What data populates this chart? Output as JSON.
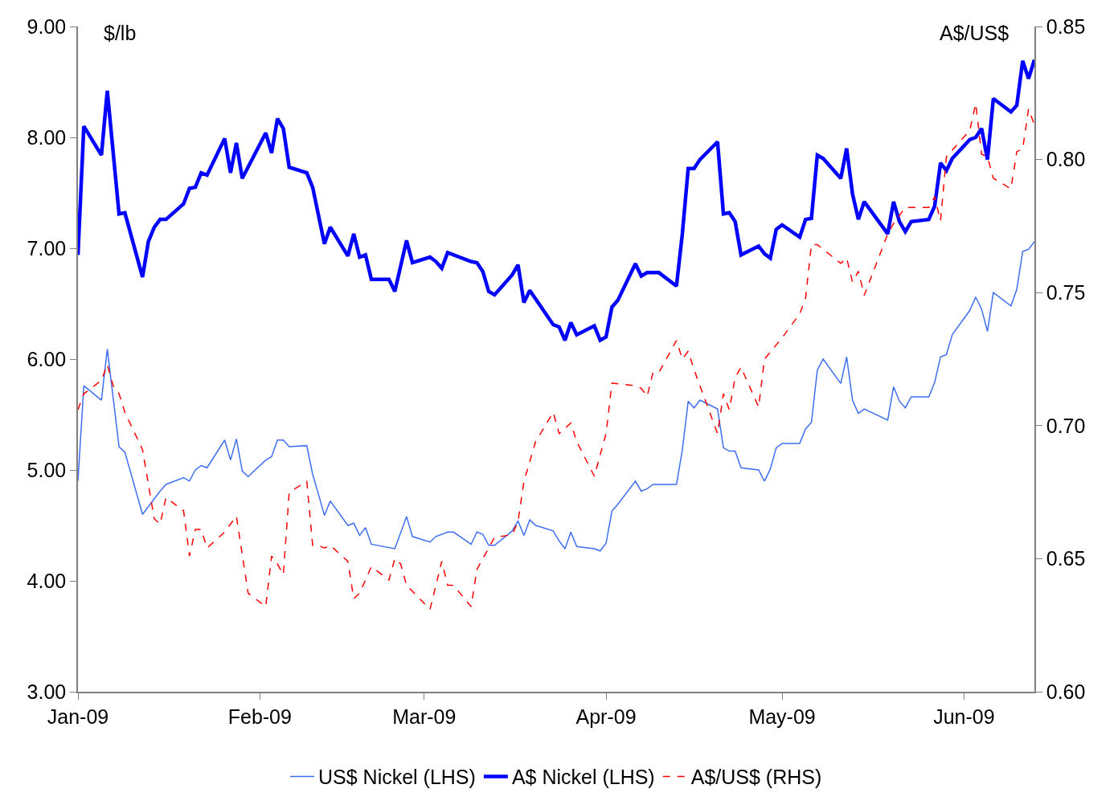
{
  "chart_data": {
    "type": "line",
    "ylabel": "$/lb",
    "y2label": "A$/US$",
    "xlim": [
      "2009-01-01",
      "2009-06-13"
    ],
    "xticks": [
      {
        "value": "2009-01-01",
        "label": "Jan-09"
      },
      {
        "value": "2009-02-01",
        "label": "Feb-09"
      },
      {
        "value": "2009-03-01",
        "label": "Mar-09"
      },
      {
        "value": "2009-04-01",
        "label": "Apr-09"
      },
      {
        "value": "2009-05-01",
        "label": "May-09"
      },
      {
        "value": "2009-06-01",
        "label": "Jun-09"
      }
    ],
    "ylim": [
      3,
      9
    ],
    "yticks": [
      {
        "value": 3,
        "label": "3.00"
      },
      {
        "value": 4,
        "label": "4.00"
      },
      {
        "value": 5,
        "label": "5.00"
      },
      {
        "value": 6,
        "label": "6.00"
      },
      {
        "value": 7,
        "label": "7.00"
      },
      {
        "value": 8,
        "label": "8.00"
      },
      {
        "value": 9,
        "label": "9.00"
      }
    ],
    "y2lim": [
      0.6,
      0.85
    ],
    "y2ticks": [
      {
        "value": 0.6,
        "label": "0.60"
      },
      {
        "value": 0.65,
        "label": "0.65"
      },
      {
        "value": 0.7,
        "label": "0.70"
      },
      {
        "value": 0.75,
        "label": "0.75"
      },
      {
        "value": 0.8,
        "label": "0.80"
      },
      {
        "value": 0.85,
        "label": "0.85"
      }
    ],
    "legend": "bottom",
    "marker": "none",
    "series": [
      {
        "name": "US$ Nickel (LHS)",
        "color": "#3f6ff0",
        "line_style": "solid",
        "x": [
          "2009-01-01",
          "2009-01-02",
          "2009-01-05",
          "2009-01-06",
          "2009-01-08",
          "2009-01-09",
          "2009-01-12",
          "2009-01-15",
          "2009-01-16",
          "2009-01-19",
          "2009-01-20",
          "2009-01-21",
          "2009-01-22",
          "2009-01-23",
          "2009-01-26",
          "2009-01-27",
          "2009-01-28",
          "2009-01-29",
          "2009-01-30",
          "2009-02-02",
          "2009-02-03",
          "2009-02-04",
          "2009-02-05",
          "2009-02-06",
          "2009-02-09",
          "2009-02-10",
          "2009-02-11",
          "2009-02-12",
          "2009-02-13",
          "2009-02-16",
          "2009-02-17",
          "2009-02-18",
          "2009-02-19",
          "2009-02-20",
          "2009-02-24",
          "2009-02-26",
          "2009-02-27",
          "2009-03-02",
          "2009-03-03",
          "2009-03-05",
          "2009-03-06",
          "2009-03-09",
          "2009-03-10",
          "2009-03-11",
          "2009-03-12",
          "2009-03-13",
          "2009-03-16",
          "2009-03-17",
          "2009-03-18",
          "2009-03-19",
          "2009-03-20",
          "2009-03-23",
          "2009-03-24",
          "2009-03-25",
          "2009-03-26",
          "2009-03-27",
          "2009-03-30",
          "2009-03-31",
          "2009-04-01",
          "2009-04-02",
          "2009-04-03",
          "2009-04-06",
          "2009-04-07",
          "2009-04-08",
          "2009-04-09",
          "2009-04-13",
          "2009-04-14",
          "2009-04-15",
          "2009-04-16",
          "2009-04-17",
          "2009-04-20",
          "2009-04-21",
          "2009-04-22",
          "2009-04-23",
          "2009-04-24",
          "2009-04-27",
          "2009-04-28",
          "2009-04-29",
          "2009-04-30",
          "2009-05-01",
          "2009-05-04",
          "2009-05-05",
          "2009-05-06",
          "2009-05-07",
          "2009-05-08",
          "2009-05-11",
          "2009-05-12",
          "2009-05-13",
          "2009-05-14",
          "2009-05-15",
          "2009-05-19",
          "2009-05-20",
          "2009-05-21",
          "2009-05-22",
          "2009-05-23",
          "2009-05-26",
          "2009-05-27",
          "2009-05-28",
          "2009-05-29",
          "2009-05-30",
          "2009-06-02",
          "2009-06-03",
          "2009-06-04",
          "2009-06-05",
          "2009-06-06",
          "2009-06-09",
          "2009-06-10",
          "2009-06-11",
          "2009-06-12",
          "2009-06-13"
        ],
        "values": [
          4.9,
          5.76,
          5.63,
          6.09,
          5.21,
          5.16,
          4.6,
          4.81,
          4.87,
          4.93,
          4.9,
          5.0,
          5.04,
          5.02,
          5.27,
          5.09,
          5.28,
          4.99,
          4.94,
          5.09,
          5.12,
          5.27,
          5.27,
          5.21,
          5.22,
          4.96,
          4.78,
          4.59,
          4.72,
          4.5,
          4.52,
          4.41,
          4.48,
          4.33,
          4.29,
          4.58,
          4.4,
          4.35,
          4.4,
          4.44,
          4.44,
          4.33,
          4.44,
          4.42,
          4.32,
          4.32,
          4.45,
          4.54,
          4.41,
          4.55,
          4.5,
          4.45,
          4.36,
          4.29,
          4.44,
          4.31,
          4.29,
          4.27,
          4.34,
          4.63,
          4.69,
          4.9,
          4.81,
          4.83,
          4.87,
          4.87,
          5.18,
          5.62,
          5.56,
          5.63,
          5.55,
          5.2,
          5.17,
          5.17,
          5.02,
          5.0,
          4.9,
          5.01,
          5.2,
          5.24,
          5.24,
          5.37,
          5.43,
          5.9,
          6.0,
          5.78,
          6.02,
          5.63,
          5.51,
          5.55,
          5.45,
          5.75,
          5.62,
          5.56,
          5.66,
          5.66,
          5.79,
          6.02,
          6.04,
          6.22,
          6.44,
          6.56,
          6.45,
          6.25,
          6.6,
          6.48,
          6.63,
          6.97,
          6.99,
          7.06
        ]
      },
      {
        "name": "A$ Nickel (LHS)",
        "color": "#0000ff",
        "line_style": "solid",
        "x": [
          "2009-01-01",
          "2009-01-02",
          "2009-01-05",
          "2009-01-06",
          "2009-01-08",
          "2009-01-09",
          "2009-01-12",
          "2009-01-13",
          "2009-01-14",
          "2009-01-15",
          "2009-01-16",
          "2009-01-19",
          "2009-01-20",
          "2009-01-21",
          "2009-01-22",
          "2009-01-23",
          "2009-01-26",
          "2009-01-27",
          "2009-01-28",
          "2009-01-29",
          "2009-02-02",
          "2009-02-03",
          "2009-02-04",
          "2009-02-05",
          "2009-02-06",
          "2009-02-09",
          "2009-02-10",
          "2009-02-12",
          "2009-02-13",
          "2009-02-16",
          "2009-02-17",
          "2009-02-18",
          "2009-02-19",
          "2009-02-20",
          "2009-02-23",
          "2009-02-24",
          "2009-02-26",
          "2009-02-27",
          "2009-03-02",
          "2009-03-03",
          "2009-03-04",
          "2009-03-05",
          "2009-03-09",
          "2009-03-10",
          "2009-03-11",
          "2009-03-12",
          "2009-03-13",
          "2009-03-16",
          "2009-03-17",
          "2009-03-18",
          "2009-03-19",
          "2009-03-23",
          "2009-03-24",
          "2009-03-25",
          "2009-03-26",
          "2009-03-27",
          "2009-03-30",
          "2009-03-31",
          "2009-04-01",
          "2009-04-02",
          "2009-04-03",
          "2009-04-06",
          "2009-04-07",
          "2009-04-08",
          "2009-04-10",
          "2009-04-13",
          "2009-04-14",
          "2009-04-15",
          "2009-04-16",
          "2009-04-17",
          "2009-04-20",
          "2009-04-21",
          "2009-04-22",
          "2009-04-23",
          "2009-04-24",
          "2009-04-27",
          "2009-04-28",
          "2009-04-29",
          "2009-04-30",
          "2009-05-01",
          "2009-05-04",
          "2009-05-05",
          "2009-05-06",
          "2009-05-07",
          "2009-05-08",
          "2009-05-11",
          "2009-05-12",
          "2009-05-13",
          "2009-05-14",
          "2009-05-15",
          "2009-05-19",
          "2009-05-20",
          "2009-05-21",
          "2009-05-22",
          "2009-05-23",
          "2009-05-26",
          "2009-05-27",
          "2009-05-28",
          "2009-05-29",
          "2009-05-30",
          "2009-06-02",
          "2009-06-03",
          "2009-06-04",
          "2009-06-05",
          "2009-06-06",
          "2009-06-09",
          "2009-06-10",
          "2009-06-11",
          "2009-06-12",
          "2009-06-13"
        ],
        "values": [
          6.94,
          8.1,
          7.84,
          8.42,
          7.31,
          7.32,
          6.74,
          7.06,
          7.19,
          7.26,
          7.26,
          7.4,
          7.54,
          7.55,
          7.68,
          7.66,
          7.99,
          7.68,
          7.95,
          7.63,
          8.04,
          7.86,
          8.17,
          8.08,
          7.73,
          7.68,
          7.55,
          7.04,
          7.19,
          6.93,
          7.13,
          6.92,
          6.94,
          6.72,
          6.72,
          6.61,
          7.07,
          6.87,
          6.92,
          6.88,
          6.82,
          6.96,
          6.88,
          6.87,
          6.79,
          6.61,
          6.58,
          6.76,
          6.85,
          6.51,
          6.62,
          6.31,
          6.29,
          6.17,
          6.33,
          6.22,
          6.3,
          6.17,
          6.2,
          6.47,
          6.53,
          6.86,
          6.75,
          6.78,
          6.78,
          6.66,
          7.13,
          7.72,
          7.72,
          7.8,
          7.96,
          7.31,
          7.32,
          7.24,
          6.94,
          7.02,
          6.95,
          6.91,
          7.17,
          7.21,
          7.1,
          7.26,
          7.27,
          7.84,
          7.81,
          7.63,
          7.9,
          7.49,
          7.26,
          7.42,
          7.13,
          7.42,
          7.24,
          7.15,
          7.24,
          7.26,
          7.38,
          7.77,
          7.7,
          7.81,
          7.98,
          8.0,
          8.08,
          7.8,
          8.35,
          8.23,
          8.29,
          8.69,
          8.53,
          8.7
        ]
      },
      {
        "name": "A$/US$ (RHS)",
        "color": "#ff0000",
        "line_style": "dashed",
        "axis": "y2",
        "x": [
          "2009-01-01",
          "2009-01-02",
          "2009-01-05",
          "2009-01-06",
          "2009-01-07",
          "2009-01-08",
          "2009-01-09",
          "2009-01-12",
          "2009-01-14",
          "2009-01-15",
          "2009-01-16",
          "2009-01-19",
          "2009-01-20",
          "2009-01-21",
          "2009-01-22",
          "2009-01-23",
          "2009-01-26",
          "2009-01-28",
          "2009-01-30",
          "2009-02-02",
          "2009-02-03",
          "2009-02-04",
          "2009-02-05",
          "2009-02-06",
          "2009-02-09",
          "2009-02-10",
          "2009-02-11",
          "2009-02-12",
          "2009-02-13",
          "2009-02-16",
          "2009-02-17",
          "2009-02-18",
          "2009-02-20",
          "2009-02-23",
          "2009-02-24",
          "2009-02-25",
          "2009-02-26",
          "2009-03-02",
          "2009-03-04",
          "2009-03-05",
          "2009-03-06",
          "2009-03-09",
          "2009-03-10",
          "2009-03-13",
          "2009-03-16",
          "2009-03-17",
          "2009-03-18",
          "2009-03-20",
          "2009-03-23",
          "2009-03-24",
          "2009-03-26",
          "2009-03-27",
          "2009-03-30",
          "2009-04-01",
          "2009-04-02",
          "2009-04-06",
          "2009-04-07",
          "2009-04-08",
          "2009-04-09",
          "2009-04-10",
          "2009-04-13",
          "2009-04-14",
          "2009-04-15",
          "2009-04-16",
          "2009-04-20",
          "2009-04-21",
          "2009-04-22",
          "2009-04-23",
          "2009-04-24",
          "2009-04-27",
          "2009-04-28",
          "2009-05-01",
          "2009-05-04",
          "2009-05-05",
          "2009-05-06",
          "2009-05-07",
          "2009-05-11",
          "2009-05-12",
          "2009-05-13",
          "2009-05-14",
          "2009-05-15",
          "2009-05-19",
          "2009-05-20",
          "2009-05-22",
          "2009-05-26",
          "2009-05-27",
          "2009-05-28",
          "2009-05-29",
          "2009-06-02",
          "2009-06-03",
          "2009-06-04",
          "2009-06-05",
          "2009-06-06",
          "2009-06-09",
          "2009-06-10",
          "2009-06-11",
          "2009-06-12",
          "2009-06-13"
        ],
        "values": [
          0.706,
          0.712,
          0.717,
          0.723,
          0.715,
          0.712,
          0.705,
          0.691,
          0.665,
          0.663,
          0.673,
          0.668,
          0.651,
          0.661,
          0.661,
          0.654,
          0.66,
          0.666,
          0.637,
          0.632,
          0.651,
          0.648,
          0.644,
          0.675,
          0.679,
          0.655,
          0.655,
          0.654,
          0.655,
          0.649,
          0.635,
          0.637,
          0.647,
          0.642,
          0.65,
          0.648,
          0.64,
          0.631,
          0.649,
          0.64,
          0.64,
          0.632,
          0.646,
          0.658,
          0.659,
          0.664,
          0.679,
          0.694,
          0.705,
          0.697,
          0.701,
          0.694,
          0.681,
          0.697,
          0.716,
          0.715,
          0.714,
          0.711,
          0.72,
          0.72,
          0.732,
          0.725,
          0.728,
          0.721,
          0.697,
          0.712,
          0.706,
          0.718,
          0.722,
          0.707,
          0.725,
          0.733,
          0.742,
          0.748,
          0.768,
          0.768,
          0.761,
          0.763,
          0.754,
          0.758,
          0.749,
          0.772,
          0.776,
          0.782,
          0.782,
          0.786,
          0.777,
          0.801,
          0.811,
          0.821,
          0.802,
          0.801,
          0.793,
          0.789,
          0.803,
          0.804,
          0.819,
          0.813
        ]
      }
    ]
  }
}
